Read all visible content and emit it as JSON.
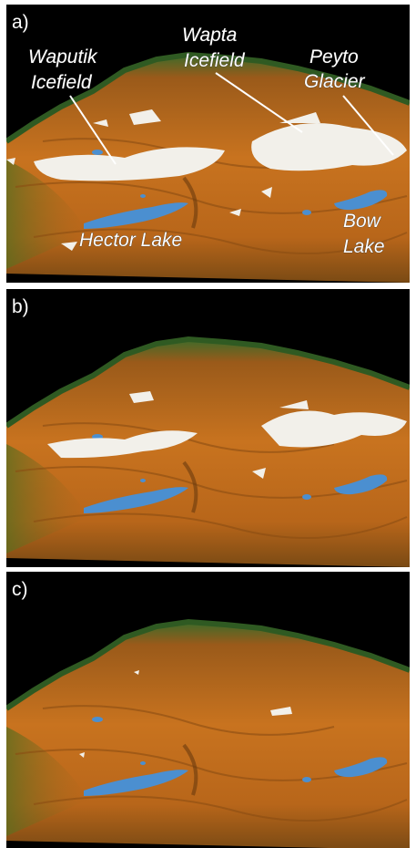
{
  "panels": [
    {
      "label": "a)",
      "annotations": [
        {
          "lines": [
            "Waputik",
            "Icefield"
          ]
        },
        {
          "lines": [
            "Wapta",
            "Icefield"
          ]
        },
        {
          "lines": [
            "Peyto",
            "Glacier"
          ]
        },
        {
          "lines": [
            "Hector Lake"
          ]
        },
        {
          "lines": [
            "Bow",
            "Lake"
          ]
        }
      ]
    },
    {
      "label": "b)"
    },
    {
      "label": "c)"
    }
  ]
}
